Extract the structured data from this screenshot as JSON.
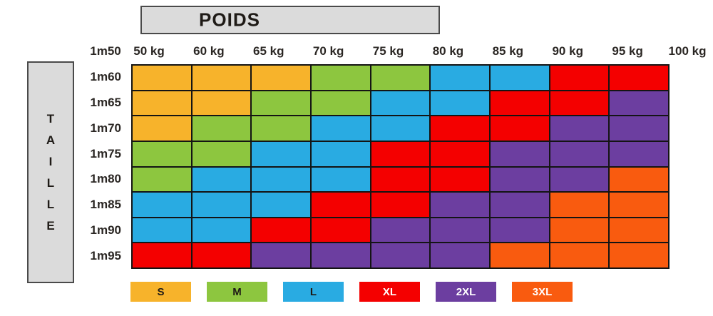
{
  "chart_data": {
    "type": "heatmap",
    "title": "POIDS",
    "xlabel": "POIDS",
    "ylabel": "TAILLE",
    "y_origin_label": "1m50",
    "x_boundary_labels": [
      "50 kg",
      "60 kg",
      "65 kg",
      "70 kg",
      "75 kg",
      "80 kg",
      "85 kg",
      "90 kg",
      "95 kg",
      "100 kg"
    ],
    "row_labels": [
      "1m60",
      "1m65",
      "1m70",
      "1m75",
      "1m80",
      "1m85",
      "1m90",
      "1m95"
    ],
    "cells": [
      [
        "S",
        "S",
        "S",
        "M",
        "M",
        "L",
        "L",
        "XL",
        "XL"
      ],
      [
        "S",
        "S",
        "M",
        "M",
        "L",
        "L",
        "XL",
        "XL",
        "2XL"
      ],
      [
        "S",
        "M",
        "M",
        "L",
        "L",
        "XL",
        "XL",
        "2XL",
        "2XL"
      ],
      [
        "M",
        "M",
        "L",
        "L",
        "XL",
        "XL",
        "2XL",
        "2XL",
        "2XL"
      ],
      [
        "M",
        "L",
        "L",
        "L",
        "XL",
        "XL",
        "2XL",
        "2XL",
        "3XL"
      ],
      [
        "L",
        "L",
        "L",
        "XL",
        "XL",
        "2XL",
        "2XL",
        "3XL",
        "3XL"
      ],
      [
        "L",
        "L",
        "XL",
        "XL",
        "2XL",
        "2XL",
        "2XL",
        "3XL",
        "3XL"
      ],
      [
        "XL",
        "XL",
        "2XL",
        "2XL",
        "2XL",
        "2XL",
        "3XL",
        "3XL",
        "3XL"
      ]
    ],
    "size_colors": {
      "S": "#F7B32B",
      "M": "#8DC63F",
      "L": "#29ABE2",
      "XL": "#F40000",
      "2XL": "#6C3EA0",
      "3XL": "#F95B0F"
    },
    "legend": [
      {
        "label": "S",
        "color": "#F7B32B",
        "text_color": "#1e1a16"
      },
      {
        "label": "M",
        "color": "#8DC63F",
        "text_color": "#1e1a16"
      },
      {
        "label": "L",
        "color": "#29ABE2",
        "text_color": "#1e1a16"
      },
      {
        "label": "XL",
        "color": "#F40000",
        "text_color": "#ffffff"
      },
      {
        "label": "2XL",
        "color": "#6C3EA0",
        "text_color": "#ffffff"
      },
      {
        "label": "3XL",
        "color": "#F95B0F",
        "text_color": "#ffffff"
      }
    ],
    "legend_position": "bottom",
    "grid": true
  }
}
